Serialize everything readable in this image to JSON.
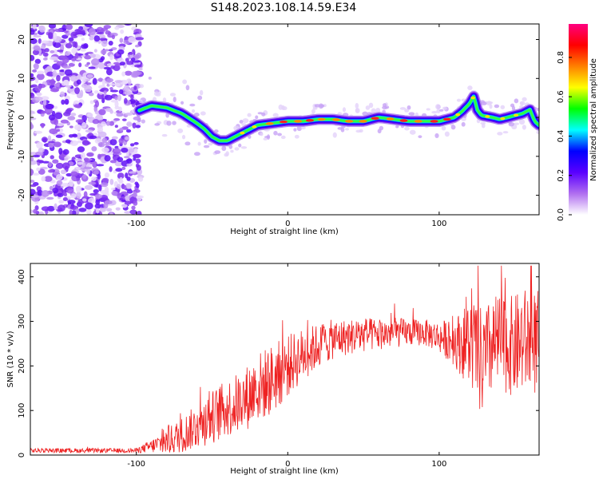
{
  "title": "S148.2023.108.14.59.E34",
  "chart_data": [
    {
      "type": "heatmap",
      "xlabel": "Height of straight line (km)",
      "ylabel": "Frequency (Hz)",
      "xlim": [
        -170,
        166
      ],
      "ylim": [
        -25,
        24
      ],
      "xticks": [
        -100,
        0,
        100
      ],
      "yticks": [
        -20,
        -10,
        0,
        10,
        20
      ],
      "colorbar": {
        "label": "Normalized spectral amplitude",
        "range": [
          0,
          0.97
        ],
        "ticks": [
          "0.0",
          "0.2",
          "0.4",
          "0.6",
          "0.8"
        ],
        "colors": [
          "#ffffff",
          "#b06ef0",
          "#5a00ff",
          "#0000ff",
          "#00ffff",
          "#00ff00",
          "#ffff00",
          "#ff8000",
          "#ff0000",
          "#ff0080"
        ]
      },
      "ridge": {
        "name": "dominant frequency track",
        "x": [
          -100,
          -90,
          -80,
          -70,
          -60,
          -55,
          -50,
          -45,
          -40,
          -35,
          -30,
          -20,
          -10,
          0,
          10,
          20,
          30,
          40,
          50,
          60,
          70,
          80,
          90,
          100,
          105,
          110,
          115,
          120,
          123,
          125,
          128,
          135,
          140,
          150,
          155,
          160,
          163,
          166
        ],
        "y": [
          1.5,
          3,
          2.5,
          1,
          -1.5,
          -3,
          -5,
          -6,
          -6,
          -5,
          -4,
          -2,
          -1.5,
          -1,
          -1,
          -0.5,
          -0.5,
          -1,
          -1,
          0,
          -0.5,
          -1,
          -1,
          -1,
          -0.5,
          0,
          1.5,
          3.5,
          5.5,
          2,
          0.5,
          0,
          -0.5,
          0.5,
          1,
          2,
          -1,
          -2
        ]
      }
    },
    {
      "type": "line",
      "xlabel": "Height of straight line (km)",
      "ylabel": "SNR (10 * v/v)",
      "xlim": [
        -170,
        166
      ],
      "ylim": [
        0,
        430
      ],
      "xticks": [
        -100,
        0,
        100
      ],
      "yticks": [
        0,
        100,
        200,
        300,
        400
      ],
      "color": "#ee2222",
      "envelope": {
        "x": [
          -170,
          -140,
          -110,
          -100,
          -95,
          -90,
          -80,
          -70,
          -60,
          -50,
          -40,
          -30,
          -20,
          -10,
          0,
          10,
          20,
          30,
          40,
          50,
          60,
          70,
          80,
          90,
          100,
          110,
          115,
          120,
          125,
          128,
          130,
          135,
          140,
          145,
          150,
          155,
          160,
          166
        ],
        "center": [
          10,
          10,
          10,
          10,
          15,
          20,
          30,
          45,
          65,
          85,
          105,
          120,
          150,
          170,
          200,
          225,
          245,
          260,
          265,
          270,
          270,
          275,
          275,
          275,
          265,
          255,
          250,
          250,
          235,
          200,
          210,
          245,
          255,
          245,
          245,
          255,
          255,
          250
        ],
        "spread": [
          5,
          5,
          5,
          6,
          10,
          15,
          30,
          40,
          50,
          60,
          65,
          70,
          80,
          80,
          70,
          60,
          50,
          45,
          40,
          40,
          35,
          35,
          30,
          30,
          35,
          55,
          75,
          100,
          115,
          130,
          120,
          110,
          110,
          110,
          115,
          120,
          120,
          120
        ]
      }
    }
  ]
}
